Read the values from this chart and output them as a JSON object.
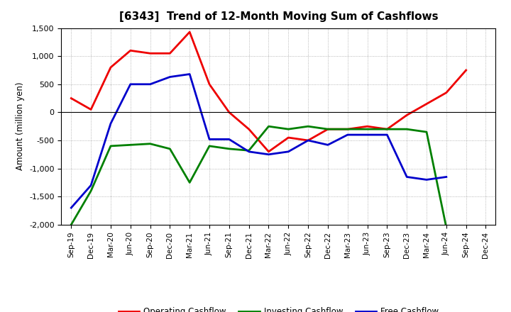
{
  "title": "[6343]  Trend of 12-Month Moving Sum of Cashflows",
  "ylabel": "Amount (million yen)",
  "xlabels": [
    "Sep-19",
    "Dec-19",
    "Mar-20",
    "Jun-20",
    "Sep-20",
    "Dec-20",
    "Mar-21",
    "Jun-21",
    "Sep-21",
    "Dec-21",
    "Mar-22",
    "Jun-22",
    "Sep-22",
    "Dec-22",
    "Mar-23",
    "Jun-23",
    "Sep-23",
    "Dec-23",
    "Mar-24",
    "Jun-24",
    "Sep-24",
    "Dec-24"
  ],
  "operating_cashflow": [
    250,
    50,
    800,
    1100,
    1050,
    1050,
    1430,
    500,
    0,
    -300,
    -700,
    -450,
    -500,
    -300,
    -300,
    -250,
    -300,
    -50,
    150,
    350,
    750,
    null
  ],
  "investing_cashflow": [
    -2000,
    -1400,
    -600,
    -580,
    -560,
    -650,
    -1250,
    -600,
    -650,
    -680,
    -250,
    -300,
    -250,
    -300,
    -300,
    -300,
    -300,
    -300,
    -350,
    -2050,
    null,
    null
  ],
  "free_cashflow": [
    -1700,
    -1300,
    -200,
    500,
    500,
    630,
    680,
    -480,
    -480,
    -700,
    -750,
    -700,
    -500,
    -580,
    -400,
    -400,
    -400,
    -1150,
    -1200,
    -1150,
    null,
    null
  ],
  "operating_color": "#ee0000",
  "investing_color": "#008000",
  "free_color": "#0000cc",
  "ylim": [
    -2000,
    1500
  ],
  "yticks": [
    -2000,
    -1500,
    -1000,
    -500,
    0,
    500,
    1000,
    1500
  ],
  "background_color": "#ffffff",
  "grid_color": "#999999"
}
